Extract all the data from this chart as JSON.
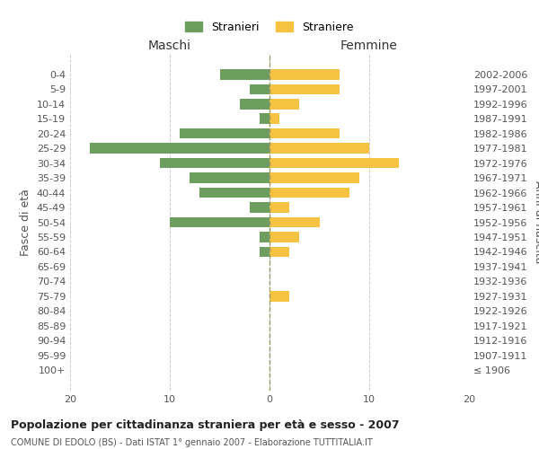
{
  "age_groups": [
    "100+",
    "95-99",
    "90-94",
    "85-89",
    "80-84",
    "75-79",
    "70-74",
    "65-69",
    "60-64",
    "55-59",
    "50-54",
    "45-49",
    "40-44",
    "35-39",
    "30-34",
    "25-29",
    "20-24",
    "15-19",
    "10-14",
    "5-9",
    "0-4"
  ],
  "birth_years": [
    "≤ 1906",
    "1907-1911",
    "1912-1916",
    "1917-1921",
    "1922-1926",
    "1927-1931",
    "1932-1936",
    "1937-1941",
    "1942-1946",
    "1947-1951",
    "1952-1956",
    "1957-1961",
    "1962-1966",
    "1967-1971",
    "1972-1976",
    "1977-1981",
    "1982-1986",
    "1987-1991",
    "1992-1996",
    "1997-2001",
    "2002-2006"
  ],
  "males": [
    0,
    0,
    0,
    0,
    0,
    0,
    0,
    0,
    1,
    1,
    10,
    2,
    7,
    8,
    11,
    18,
    9,
    1,
    3,
    2,
    5
  ],
  "females": [
    0,
    0,
    0,
    0,
    0,
    2,
    0,
    0,
    2,
    3,
    5,
    2,
    8,
    9,
    13,
    10,
    7,
    1,
    3,
    7,
    7
  ],
  "male_color": "#6e9e5f",
  "female_color": "#f5c242",
  "male_label": "Stranieri",
  "female_label": "Straniere",
  "title": "Popolazione per cittadinanza straniera per età e sesso - 2007",
  "subtitle": "COMUNE DI EDOLO (BS) - Dati ISTAT 1° gennaio 2007 - Elaborazione TUTTITALIA.IT",
  "xlabel_left": "Maschi",
  "xlabel_right": "Femmine",
  "ylabel_left": "Fasce di età",
  "ylabel_right": "Anni di nascita",
  "xlim": 20,
  "background_color": "#ffffff",
  "grid_color": "#cccccc",
  "dashed_line_color": "#999966"
}
